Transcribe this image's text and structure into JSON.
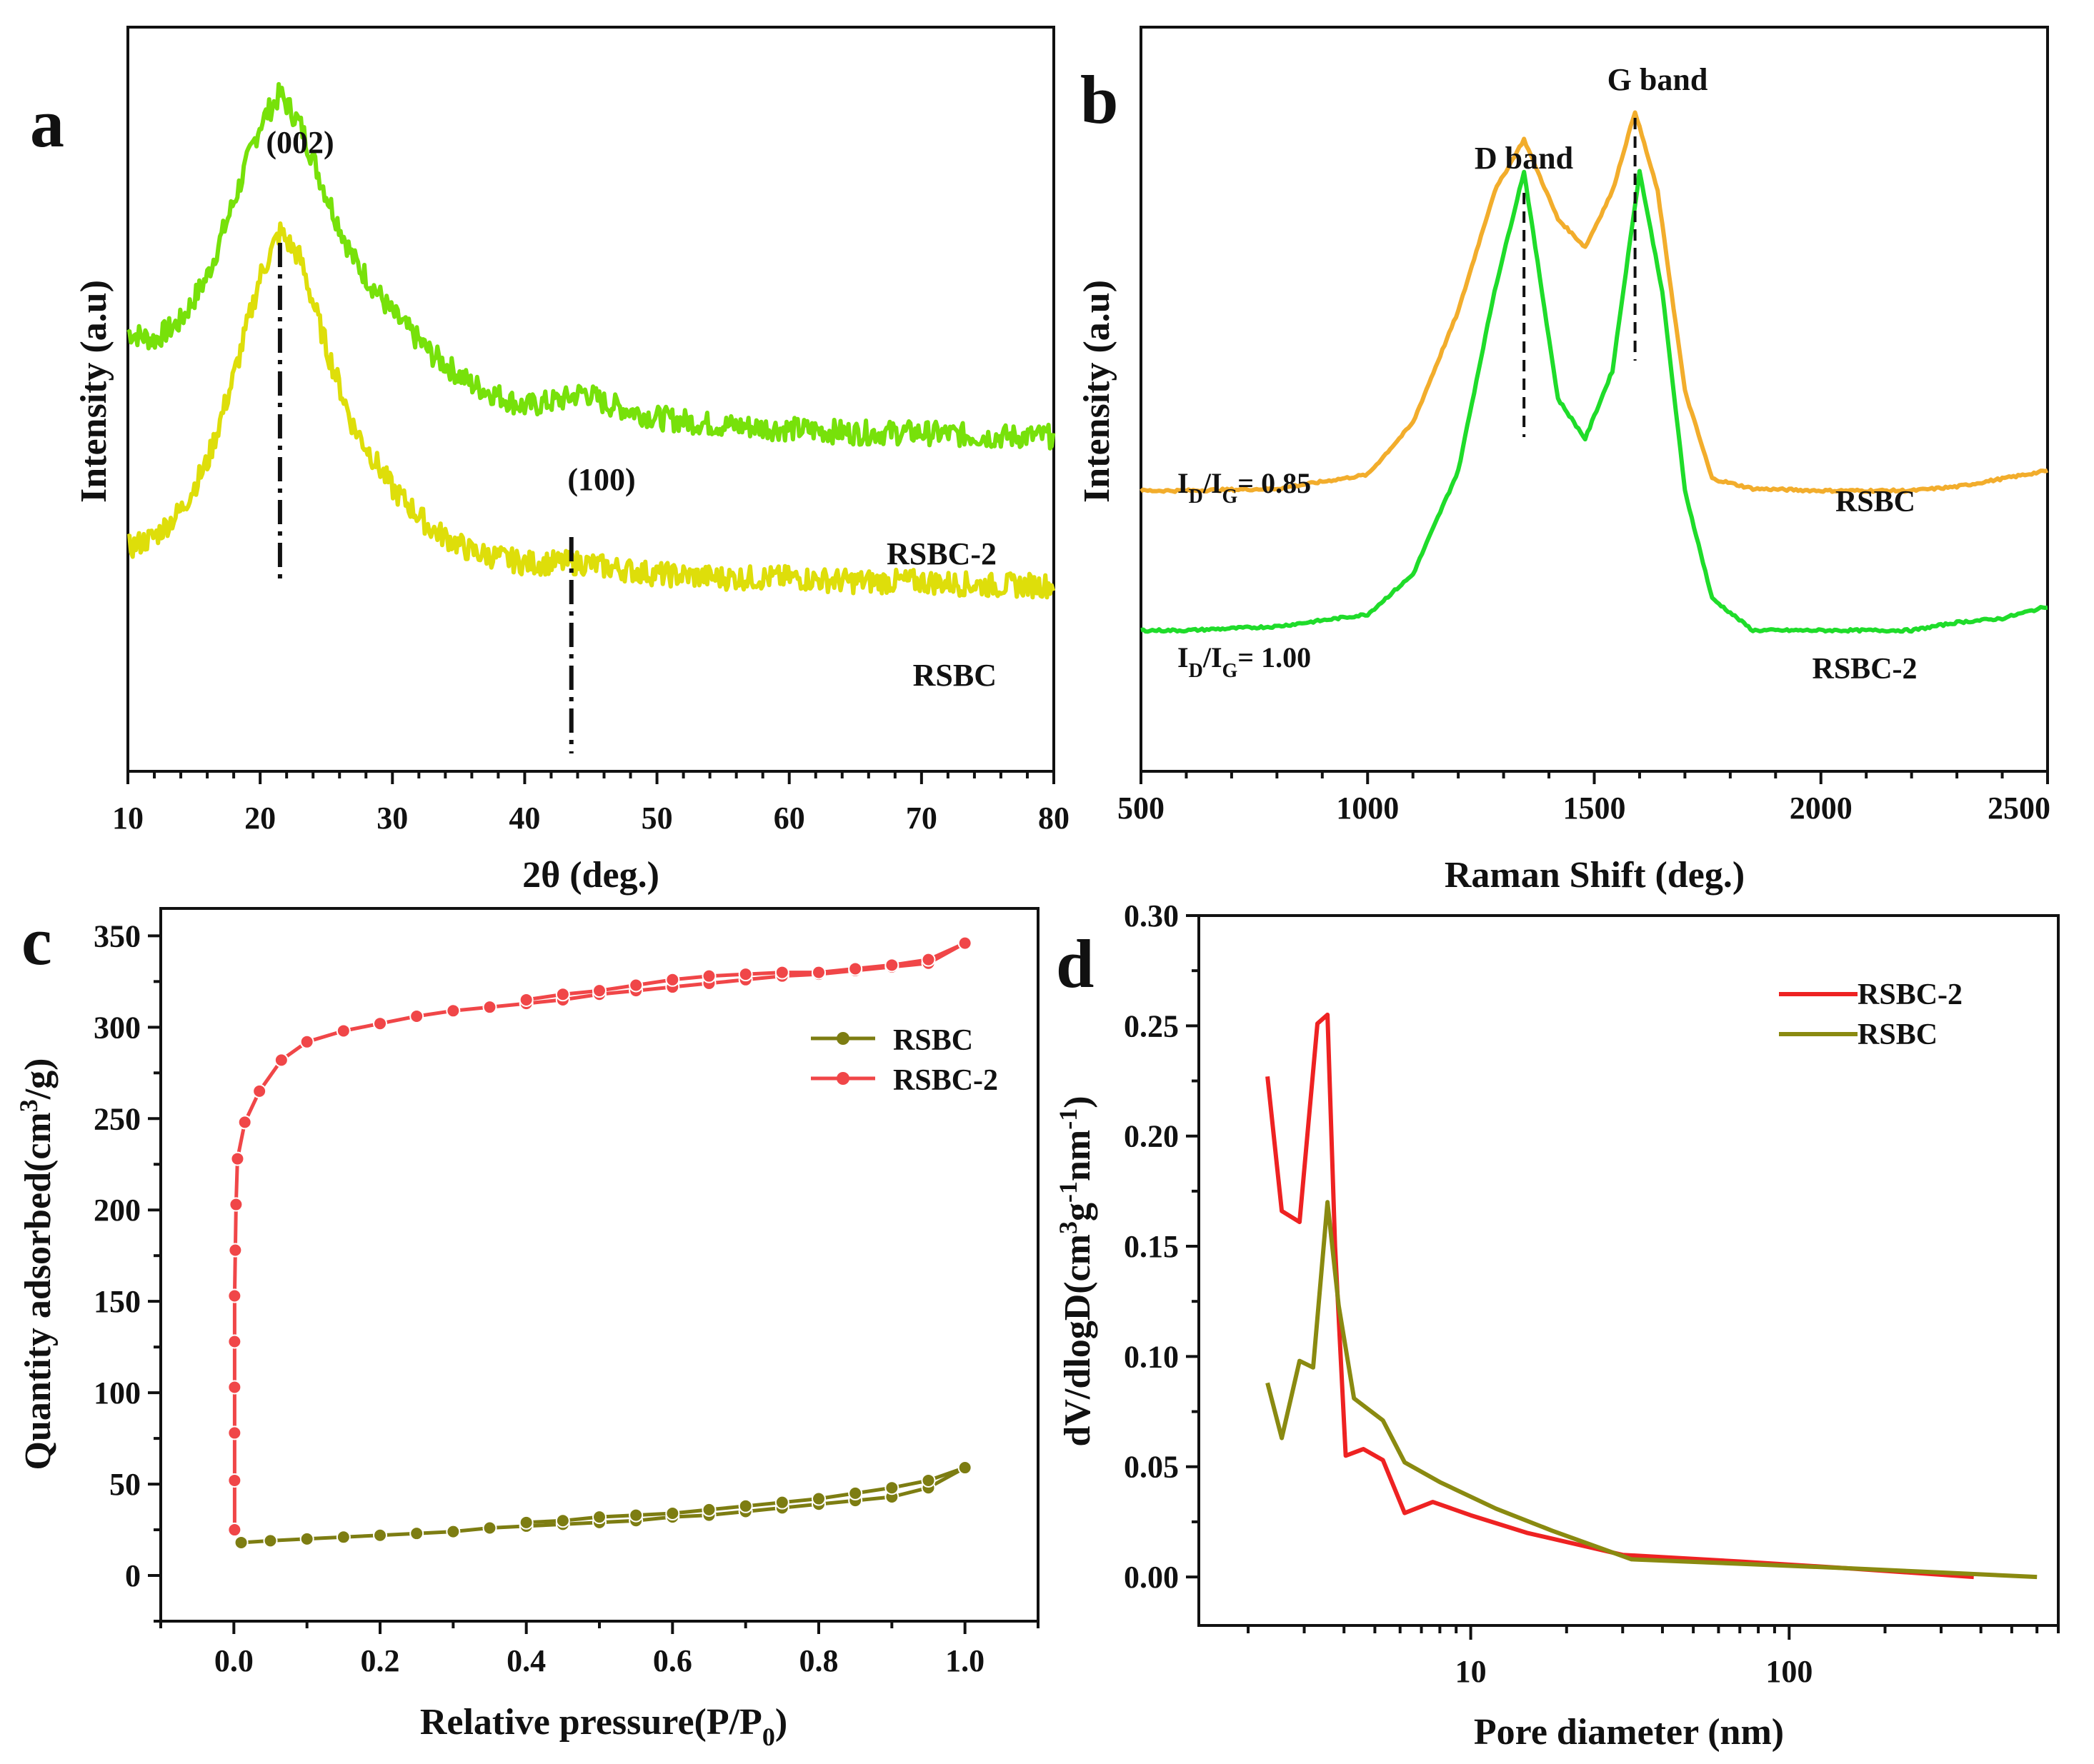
{
  "colors": {
    "xrd_rsbc2": "#77e10a",
    "xrd_rsbc": "#dede0a",
    "raman_rsbc": "#f2ad2c",
    "raman_rsbc2": "#1fdc2a",
    "bet_rsbc2": "#f04648",
    "bet_rsbc": "#7d7d12",
    "pore_rsbc2": "#ee2222",
    "pore_rsbc": "#8a8a10",
    "axis": "#111111"
  },
  "chart_data": [
    {
      "panel": "a",
      "type": "line",
      "xlabel": "2θ (deg.)",
      "ylabel": "Intensity (a.u)",
      "xlim": [
        10,
        80
      ],
      "xticks": [
        10,
        20,
        30,
        40,
        50,
        60,
        70,
        80
      ],
      "peak_labels": [
        "(002)",
        "(100)"
      ],
      "peak_positions": [
        21.5,
        44.5
      ],
      "series": [
        {
          "name": "RSBC-2",
          "x": [
            10,
            12,
            14,
            16,
            18,
            20,
            21.5,
            23,
            25,
            27,
            30,
            33,
            36,
            40,
            43,
            44.5,
            46,
            50,
            55,
            60,
            65,
            70,
            75,
            80
          ],
          "y": [
            1.18,
            1.16,
            1.21,
            1.33,
            1.53,
            1.74,
            1.82,
            1.74,
            1.55,
            1.38,
            1.23,
            1.12,
            1.04,
            0.98,
            1.0,
            1.02,
            0.99,
            0.95,
            0.93,
            0.92,
            0.91,
            0.91,
            0.9,
            0.9
          ]
        },
        {
          "name": "RSBC",
          "x": [
            10,
            12,
            14,
            16,
            18,
            20,
            21.5,
            23,
            25,
            27,
            30,
            33,
            36,
            40,
            43,
            44.5,
            46,
            50,
            55,
            60,
            65,
            70,
            75,
            80
          ],
          "y": [
            0.6,
            0.63,
            0.7,
            0.83,
            1.06,
            1.33,
            1.45,
            1.38,
            1.14,
            0.93,
            0.76,
            0.65,
            0.59,
            0.56,
            0.56,
            0.56,
            0.55,
            0.53,
            0.52,
            0.52,
            0.51,
            0.51,
            0.5,
            0.5
          ]
        }
      ]
    },
    {
      "panel": "b",
      "type": "line",
      "xlabel": "Raman Shift (deg.)",
      "ylabel": "Intensity (a.u)",
      "xlim": [
        500,
        2500
      ],
      "xticks": [
        500,
        1000,
        1500,
        2000,
        2500
      ],
      "band_labels": [
        "D band",
        "G band"
      ],
      "band_positions": [
        1345,
        1590
      ],
      "ratio_main": [
        "I",
        "I",
        "= 0.85",
        "= 1.00"
      ],
      "ratio_sub": [
        "D",
        "G"
      ],
      "series": [
        {
          "name": "RSBC",
          "x": [
            500,
            600,
            800,
            1000,
            1100,
            1200,
            1280,
            1345,
            1420,
            1480,
            1540,
            1590,
            1640,
            1700,
            1760,
            1850,
            2000,
            2200,
            2300,
            2400,
            2500
          ],
          "y": [
            0.05,
            0.05,
            0.055,
            0.09,
            0.22,
            0.5,
            0.8,
            0.93,
            0.73,
            0.66,
            0.8,
            1.0,
            0.8,
            0.3,
            0.08,
            0.055,
            0.05,
            0.05,
            0.06,
            0.08,
            0.1
          ]
        },
        {
          "name": "RSBC-2",
          "x": [
            500,
            600,
            800,
            1000,
            1100,
            1200,
            1280,
            1345,
            1420,
            1480,
            1540,
            1600,
            1650,
            1700,
            1760,
            1850,
            2000,
            2200,
            2300,
            2400,
            2500
          ],
          "y": [
            -0.3,
            -0.3,
            -0.29,
            -0.26,
            -0.16,
            0.1,
            0.55,
            0.85,
            0.28,
            0.18,
            0.35,
            0.85,
            0.55,
            0.05,
            -0.22,
            -0.3,
            -0.3,
            -0.3,
            -0.28,
            -0.27,
            -0.24
          ]
        }
      ],
      "series_labels": [
        "RSBC",
        "RSBC-2"
      ]
    },
    {
      "panel": "c",
      "type": "line",
      "xlabel": "Relative pressure(P/P",
      "xlabel_sub": "0",
      "xlabel_end": ")",
      "ylabel": "Quantity adsorbed(cm",
      "ylabel_sup": "3",
      "ylabel_end": "/g)",
      "xlim": [
        -0.1,
        1.1
      ],
      "ylim": [
        -25,
        365
      ],
      "xticks": [
        0.0,
        0.2,
        0.4,
        0.6,
        0.8,
        1.0
      ],
      "xtick_labels": [
        "0.0",
        "0.2",
        "0.4",
        "0.6",
        "0.8",
        "1.0"
      ],
      "yticks": [
        0,
        50,
        100,
        150,
        200,
        250,
        300,
        350
      ],
      "legend": [
        "RSBC",
        "RSBC-2"
      ],
      "series": [
        {
          "name": "RSBC-2",
          "x": [
            0.001,
            0.001,
            0.001,
            0.001,
            0.001,
            0.001,
            0.002,
            0.003,
            0.005,
            0.015,
            0.035,
            0.065,
            0.1,
            0.15,
            0.2,
            0.25,
            0.3,
            0.35,
            0.4,
            0.45,
            0.5,
            0.55,
            0.6,
            0.65,
            0.7,
            0.75,
            0.8,
            0.85,
            0.9,
            0.95,
            1.0,
            0.95,
            0.9,
            0.85,
            0.8,
            0.75,
            0.7,
            0.65,
            0.6,
            0.55,
            0.5,
            0.45,
            0.4
          ],
          "y": [
            25,
            52,
            78,
            103,
            128,
            153,
            178,
            203,
            228,
            248,
            265,
            282,
            292,
            298,
            302,
            306,
            309,
            311,
            313,
            315,
            318,
            320,
            322,
            324,
            326,
            328,
            329,
            331,
            333,
            335,
            346,
            337,
            334,
            332,
            330,
            330,
            329,
            328,
            326,
            323,
            320,
            318,
            315
          ]
        },
        {
          "name": "RSBC",
          "x": [
            0.01,
            0.05,
            0.1,
            0.15,
            0.2,
            0.25,
            0.3,
            0.35,
            0.4,
            0.45,
            0.5,
            0.55,
            0.6,
            0.65,
            0.7,
            0.75,
            0.8,
            0.85,
            0.9,
            0.95,
            1.0,
            0.95,
            0.9,
            0.85,
            0.8,
            0.75,
            0.7,
            0.65,
            0.6,
            0.55,
            0.5,
            0.45,
            0.4
          ],
          "y": [
            18,
            19,
            20,
            21,
            22,
            23,
            24,
            26,
            27,
            28,
            29,
            30,
            32,
            33,
            35,
            37,
            39,
            41,
            43,
            48,
            59,
            52,
            48,
            45,
            42,
            40,
            38,
            36,
            34,
            33,
            32,
            30,
            29
          ]
        }
      ]
    },
    {
      "panel": "d",
      "type": "line",
      "xscale": "log",
      "xlabel": "Pore diameter (nm)",
      "ylabel": "dV/dlogD(cm",
      "ylabel_sup1": "3",
      "ylabel_mid": "g",
      "ylabel_sup2": "-1",
      "ylabel_mid2": "nm",
      "ylabel_sup3": "-1",
      "ylabel_end": ")",
      "xlim": [
        1.4,
        700
      ],
      "ylim": [
        -0.022,
        0.3
      ],
      "xticks": [
        10,
        100
      ],
      "yticks": [
        0.0,
        0.05,
        0.1,
        0.15,
        0.2,
        0.25,
        0.3
      ],
      "ytick_labels": [
        "0.00",
        "0.05",
        "0.10",
        "0.15",
        "0.20",
        "0.25",
        "0.30"
      ],
      "legend": [
        "RSBC-2",
        "RSBC"
      ],
      "series": [
        {
          "name": "RSBC-2",
          "x": [
            2.3,
            2.55,
            2.9,
            3.3,
            3.55,
            3.75,
            4.05,
            4.6,
            5.3,
            6.2,
            7.6,
            10,
            15,
            30,
            70,
            150,
            380
          ],
          "y": [
            0.227,
            0.166,
            0.161,
            0.251,
            0.255,
            0.15,
            0.055,
            0.058,
            0.053,
            0.029,
            0.034,
            0.028,
            0.02,
            0.01,
            0.007,
            0.004,
            0.0
          ]
        },
        {
          "name": "RSBC",
          "x": [
            2.3,
            2.55,
            2.9,
            3.2,
            3.55,
            3.85,
            4.3,
            5.3,
            6.2,
            8,
            12,
            18,
            32,
            70,
            150,
            300,
            600
          ],
          "y": [
            0.088,
            0.063,
            0.098,
            0.095,
            0.17,
            0.123,
            0.081,
            0.071,
            0.052,
            0.043,
            0.031,
            0.021,
            0.008,
            0.006,
            0.004,
            0.002,
            0.0
          ]
        }
      ]
    }
  ],
  "panel_letters": [
    "a",
    "b",
    "c",
    "d"
  ]
}
